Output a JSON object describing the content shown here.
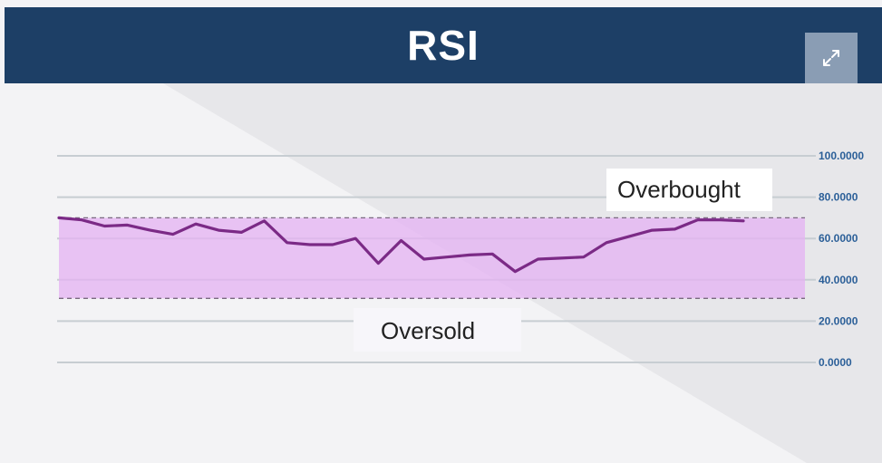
{
  "header": {
    "title": "RSI"
  },
  "controls": {
    "expand_icon": "expand-icon"
  },
  "colors": {
    "header_bg": "#1d3f66",
    "band_fill": "#e4b3f2",
    "line": "#7b2a86",
    "grid": "#c7cdd2",
    "tick": "#2b5f98"
  },
  "chart_data": {
    "type": "line",
    "title": "RSI",
    "xlabel": "",
    "ylabel": "",
    "ylim": [
      0,
      100
    ],
    "y_ticks": [
      100,
      80,
      60,
      40,
      20,
      0
    ],
    "y_tick_labels": [
      "100.0000",
      "80.0000",
      "60.0000",
      "40.0000",
      "20.0000",
      "0.0000"
    ],
    "grid": true,
    "band": {
      "lower": 31,
      "upper": 70
    },
    "annotations": {
      "overbought": "Overbought",
      "oversold": "Oversold"
    },
    "series": [
      {
        "values": [
          70,
          69,
          66,
          66.5,
          64,
          62,
          67,
          64,
          63,
          68.5,
          58,
          57,
          57,
          60,
          48,
          59,
          50,
          51,
          52,
          52.5,
          44,
          50,
          50.5,
          51,
          58,
          61,
          64,
          64.5,
          69,
          69,
          68.5
        ]
      }
    ]
  }
}
